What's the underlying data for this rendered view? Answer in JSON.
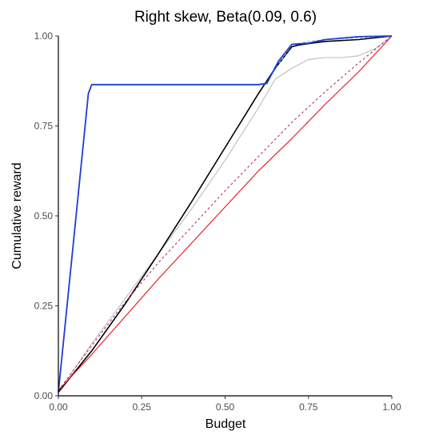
{
  "chart_data": {
    "type": "line",
    "title": "Right skew, Beta(0.09, 0.6)",
    "xlabel": "Budget",
    "ylabel": "Cumulative reward",
    "xlim": [
      0,
      1
    ],
    "ylim": [
      0,
      1
    ],
    "xticks": [
      "0.00",
      "0.25",
      "0.50",
      "0.75",
      "1.00"
    ],
    "yticks": [
      "0.00",
      "0.25",
      "0.50",
      "0.75",
      "1.00"
    ],
    "grid": false,
    "legend": "none",
    "series": [
      {
        "color": "#bdbdbd",
        "style": "solid",
        "x": [
          0,
          0.1,
          0.2,
          0.3,
          0.4,
          0.5,
          0.6,
          0.65,
          0.7,
          0.75,
          0.8,
          0.85,
          0.9,
          0.95,
          1.0
        ],
        "y": [
          0.01,
          0.145,
          0.27,
          0.395,
          0.52,
          0.655,
          0.8,
          0.88,
          0.91,
          0.935,
          0.94,
          0.94,
          0.945,
          0.965,
          1.0
        ]
      },
      {
        "color": "#000000",
        "style": "solid",
        "x": [
          0,
          0.1,
          0.2,
          0.3,
          0.4,
          0.5,
          0.6,
          0.65,
          0.7,
          0.72,
          0.8,
          0.9,
          1.0
        ],
        "y": [
          0.01,
          0.125,
          0.255,
          0.395,
          0.54,
          0.69,
          0.84,
          0.91,
          0.97,
          0.975,
          0.985,
          0.99,
          1.0
        ]
      },
      {
        "color": "#e8141c",
        "style": "solid",
        "x": [
          0,
          0.1,
          0.2,
          0.3,
          0.4,
          0.5,
          0.6,
          0.7,
          0.8,
          0.9,
          1.0
        ],
        "y": [
          0.015,
          0.115,
          0.22,
          0.325,
          0.425,
          0.525,
          0.625,
          0.715,
          0.81,
          0.9,
          1.0
        ]
      },
      {
        "color": "#c0306b",
        "style": "dashed",
        "x": [
          0,
          0.1,
          0.2,
          0.3,
          0.4,
          0.5,
          0.6,
          0.7,
          0.8,
          0.9,
          1.0
        ],
        "y": [
          0.015,
          0.14,
          0.26,
          0.37,
          0.47,
          0.57,
          0.665,
          0.76,
          0.845,
          0.925,
          1.0
        ]
      },
      {
        "color": "#7fb0e8",
        "style": "dashed",
        "x": [
          0,
          0.09,
          0.1,
          0.2,
          0.3,
          0.4,
          0.5,
          0.6,
          0.62,
          0.66,
          0.7,
          0.75,
          0.8,
          0.9,
          1.0
        ],
        "y": [
          0.01,
          0.84,
          0.865,
          0.865,
          0.865,
          0.865,
          0.865,
          0.865,
          0.865,
          0.92,
          0.975,
          0.985,
          0.99,
          0.995,
          1.0
        ]
      },
      {
        "color": "#1f3cd6",
        "style": "solid",
        "x": [
          0,
          0.09,
          0.1,
          0.2,
          0.3,
          0.4,
          0.5,
          0.6,
          0.625,
          0.66,
          0.7,
          0.75,
          0.8,
          0.9,
          1.0
        ],
        "y": [
          0.01,
          0.84,
          0.865,
          0.865,
          0.865,
          0.865,
          0.865,
          0.865,
          0.868,
          0.93,
          0.977,
          0.98,
          0.99,
          0.998,
          1.0
        ]
      }
    ]
  }
}
